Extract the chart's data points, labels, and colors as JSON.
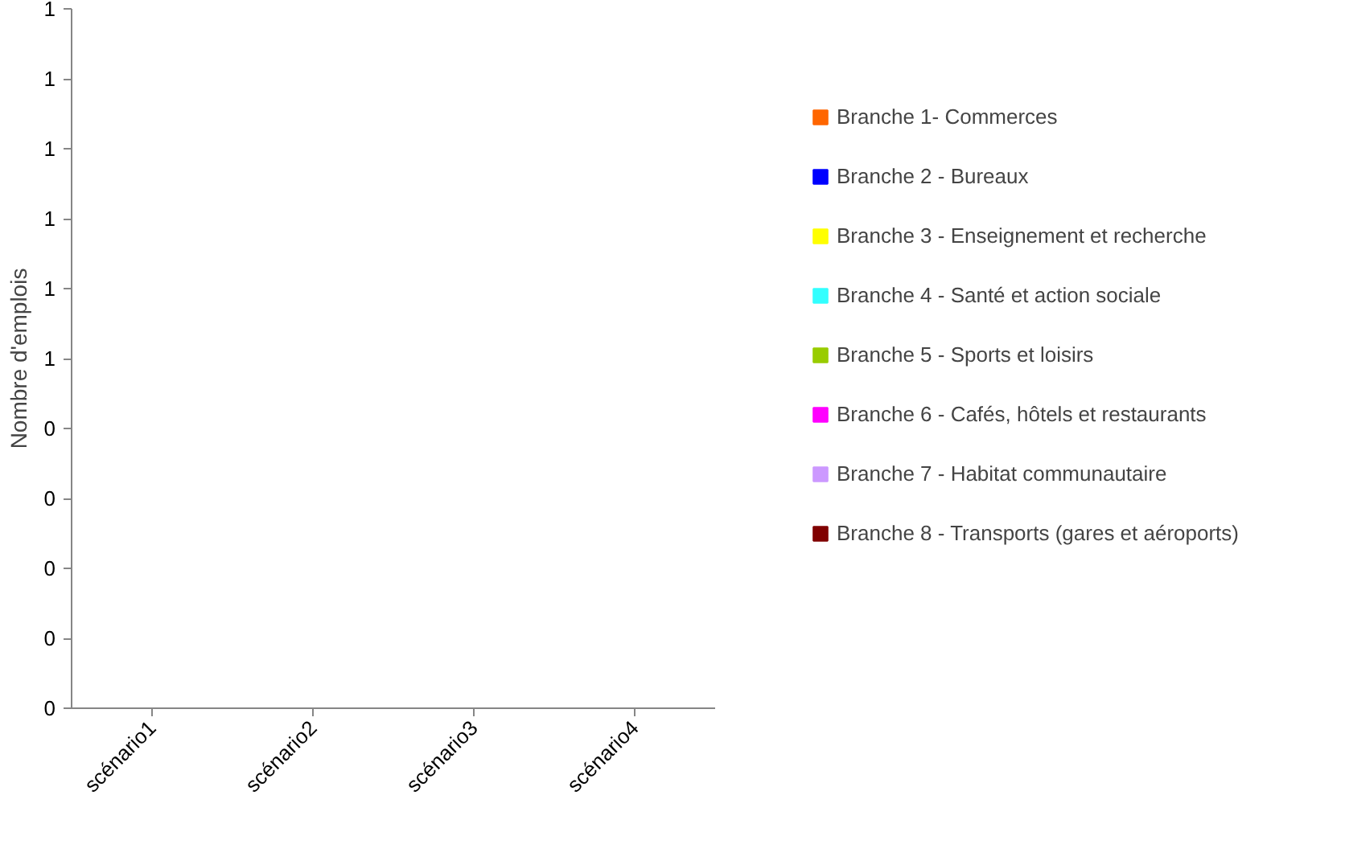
{
  "chart_data": {
    "type": "bar",
    "ylabel": "Nombre d'emplois",
    "categories": [
      "scénario1",
      "scénario2",
      "scénario3",
      "scénario4"
    ],
    "series": [
      {
        "name": "Branche 1- Commerces",
        "color": "#ff6600",
        "values": [
          0,
          0,
          0,
          0
        ]
      },
      {
        "name": "Branche 2 - Bureaux",
        "color": "#0000ff",
        "values": [
          0,
          0,
          0,
          0
        ]
      },
      {
        "name": "Branche 3 - Enseignement et recherche",
        "color": "#ffff00",
        "values": [
          0,
          0,
          0,
          0
        ]
      },
      {
        "name": "Branche 4 - Santé et action sociale",
        "color": "#33ffff",
        "values": [
          0,
          0,
          0,
          0
        ]
      },
      {
        "name": "Branche 5 - Sports et loisirs",
        "color": "#99cc00",
        "values": [
          0,
          0,
          0,
          0
        ]
      },
      {
        "name": "Branche 6 - Cafés, hôtels et restaurants",
        "color": "#ff00ff",
        "values": [
          0,
          0,
          0,
          0
        ]
      },
      {
        "name": "Branche 7 - Habitat communautaire",
        "color": "#cc99ff",
        "values": [
          0,
          0,
          0,
          0
        ]
      },
      {
        "name": "Branche 8 - Transports (gares et aéroports)",
        "color": "#800000",
        "values": [
          0,
          0,
          0,
          0
        ]
      }
    ],
    "ylim": [
      0,
      1
    ],
    "yticks": [
      {
        "value": 0,
        "label": "0"
      },
      {
        "value": 0.1,
        "label": "0"
      },
      {
        "value": 0.2,
        "label": "0"
      },
      {
        "value": 0.3,
        "label": "0"
      },
      {
        "value": 0.4,
        "label": "0"
      },
      {
        "value": 0.5,
        "label": "1"
      },
      {
        "value": 0.6,
        "label": "1"
      },
      {
        "value": 0.7,
        "label": "1"
      },
      {
        "value": 0.8,
        "label": "1"
      },
      {
        "value": 0.9,
        "label": "1"
      },
      {
        "value": 1,
        "label": "1"
      }
    ],
    "grid": false,
    "legend": "right"
  }
}
